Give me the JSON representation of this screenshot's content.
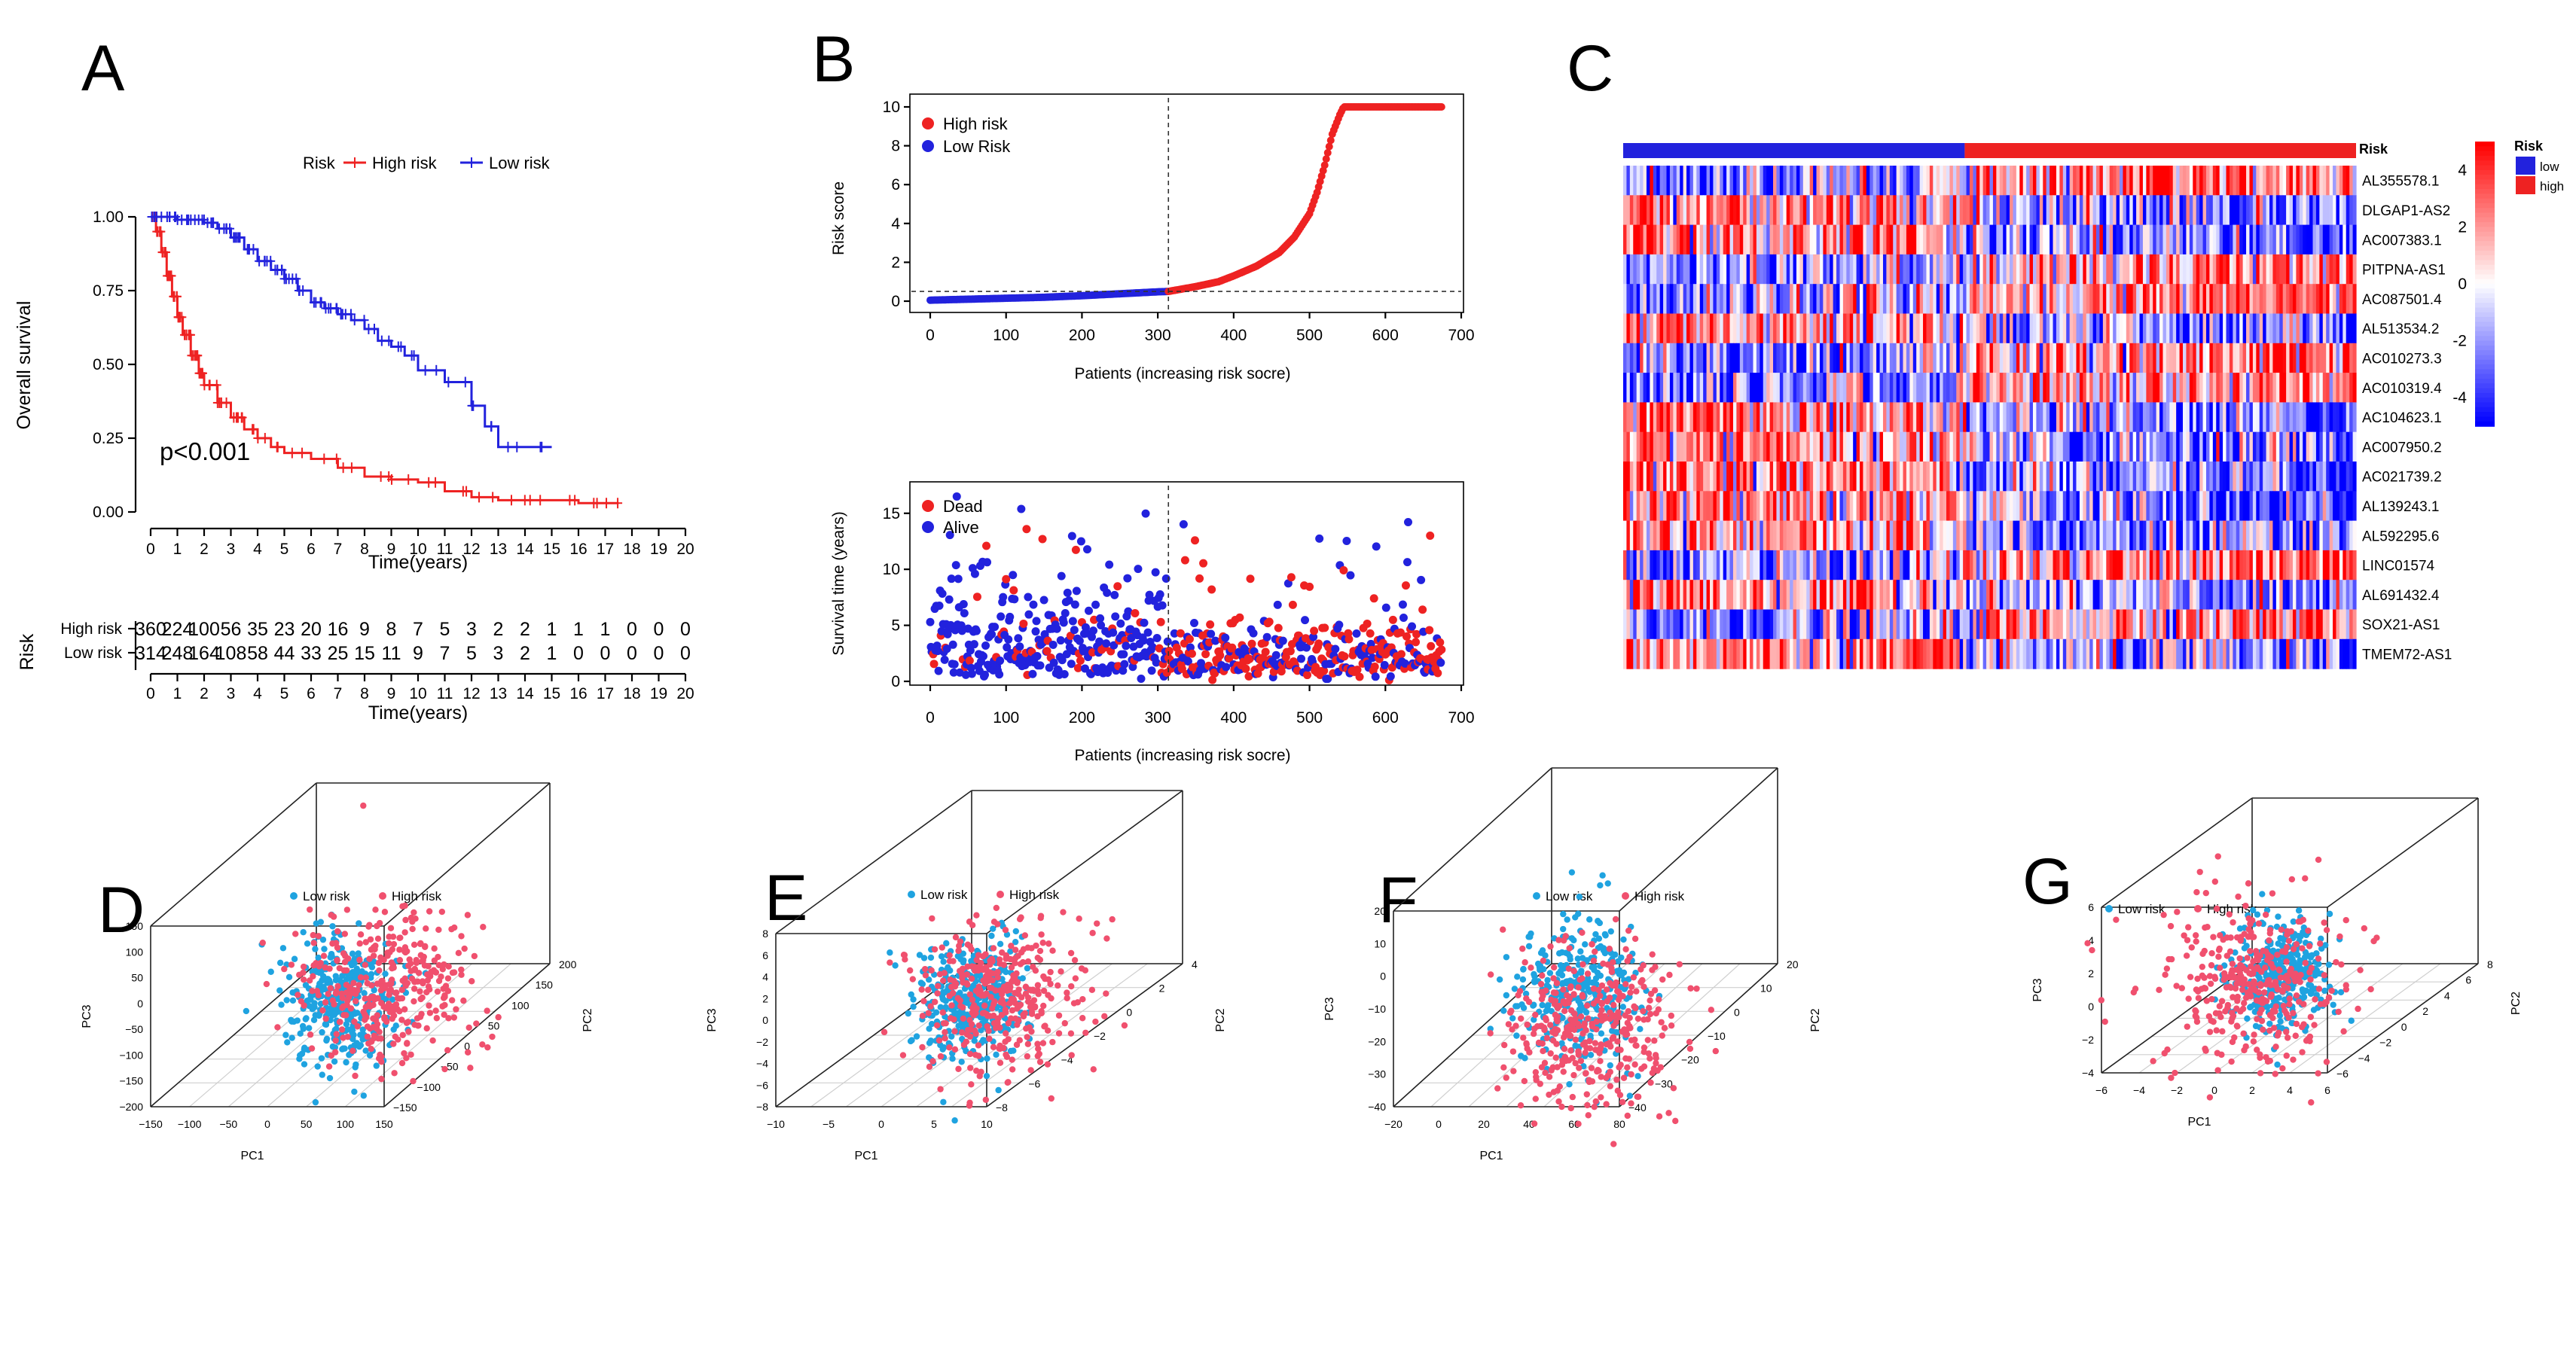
{
  "panels": {
    "A": {
      "letter": "A",
      "chart_data": {
        "type": "line",
        "subtype": "kaplan-meier",
        "legend_title": "Risk",
        "legend": [
          {
            "name": "High risk",
            "color": "#ee2222"
          },
          {
            "name": "Low risk",
            "color": "#2222dd"
          }
        ],
        "xlabel": "Time(years)",
        "ylabel": "Overall survival",
        "xlim": [
          0,
          20
        ],
        "ylim": [
          0,
          1
        ],
        "x_ticks": [
          "0",
          "1",
          "2",
          "3",
          "4",
          "5",
          "6",
          "7",
          "8",
          "9",
          "10",
          "11",
          "12",
          "13",
          "14",
          "15",
          "16",
          "17",
          "18",
          "19",
          "20"
        ],
        "y_ticks": [
          "0.00",
          "0.25",
          "0.50",
          "0.75",
          "1.00"
        ],
        "pvalue": "p<0.001",
        "series": [
          {
            "name": "High risk",
            "color": "#ee2222",
            "x": [
              0,
              0.2,
              0.4,
              0.6,
              0.8,
              1,
              1.2,
              1.5,
              1.8,
              2,
              2.5,
              3,
              3.5,
              4,
              4.5,
              5,
              6,
              7,
              8,
              9,
              10,
              11,
              12,
              13,
              14,
              15,
              16,
              17,
              17.5
            ],
            "y": [
              1,
              0.95,
              0.88,
              0.8,
              0.73,
              0.66,
              0.6,
              0.53,
              0.47,
              0.43,
              0.37,
              0.32,
              0.28,
              0.25,
              0.22,
              0.2,
              0.18,
              0.15,
              0.12,
              0.11,
              0.1,
              0.07,
              0.05,
              0.04,
              0.04,
              0.04,
              0.03,
              0.03,
              0.03
            ]
          },
          {
            "name": "Low risk",
            "color": "#2222dd",
            "x": [
              0,
              0.5,
              1,
              1.5,
              2,
              2.5,
              3,
              3.5,
              4,
              4.5,
              5,
              5.5,
              6,
              6.5,
              7,
              7.5,
              8,
              8.5,
              9,
              9.5,
              10,
              11,
              12,
              12.5,
              13,
              14,
              15
            ],
            "y": [
              1,
              1,
              0.99,
              0.99,
              0.98,
              0.96,
              0.93,
              0.89,
              0.85,
              0.82,
              0.79,
              0.75,
              0.71,
              0.69,
              0.67,
              0.65,
              0.62,
              0.58,
              0.56,
              0.53,
              0.48,
              0.44,
              0.36,
              0.29,
              0.22,
              0.22,
              0.22
            ]
          }
        ]
      },
      "risk_table": {
        "title": "Risk",
        "xlabel": "Time(years)",
        "x_ticks": [
          "0",
          "1",
          "2",
          "3",
          "4",
          "5",
          "6",
          "7",
          "8",
          "9",
          "10",
          "11",
          "12",
          "13",
          "14",
          "15",
          "16",
          "17",
          "18",
          "19",
          "20"
        ],
        "rows": [
          {
            "label": "High risk",
            "color": "#ee2222",
            "values": [
              "360",
              "224",
              "100",
              "56",
              "35",
              "23",
              "20",
              "16",
              "9",
              "8",
              "7",
              "5",
              "3",
              "2",
              "2",
              "1",
              "1",
              "1",
              "0",
              "0",
              "0"
            ]
          },
          {
            "label": "Low risk",
            "color": "#2222dd",
            "values": [
              "314",
              "248",
              "164",
              "108",
              "58",
              "44",
              "33",
              "25",
              "15",
              "11",
              "9",
              "7",
              "5",
              "3",
              "2",
              "1",
              "0",
              "0",
              "0",
              "0",
              "0"
            ]
          }
        ]
      }
    },
    "B": {
      "letter": "B",
      "top": {
        "chart_data": {
          "type": "scatter",
          "xlabel": "Patients (increasing risk socre)",
          "ylabel": "Risk score",
          "xlim": [
            0,
            700
          ],
          "ylim": [
            0,
            10
          ],
          "x_ticks": [
            "0",
            "100",
            "200",
            "300",
            "400",
            "500",
            "600",
            "700"
          ],
          "y_ticks": [
            "0",
            "2",
            "4",
            "6",
            "8",
            "10"
          ],
          "cutoff_x": 314,
          "cutoff_y": 0.5,
          "legend": [
            {
              "name": "High risk",
              "color": "#ee2222"
            },
            {
              "name": "Low Risk",
              "color": "#2222dd"
            }
          ],
          "curve_points": {
            "x": [
              0,
              50,
              100,
              150,
              200,
              250,
              300,
              314,
              350,
              380,
              400,
              430,
              460,
              480,
              500,
              510,
              520,
              530,
              540,
              545,
              600,
              674
            ],
            "y": [
              0.05,
              0.1,
              0.15,
              0.2,
              0.28,
              0.38,
              0.48,
              0.5,
              0.75,
              1.0,
              1.3,
              1.8,
              2.5,
              3.3,
              4.5,
              5.6,
              7,
              8.6,
              9.6,
              10,
              10,
              10
            ]
          }
        }
      },
      "bottom": {
        "chart_data": {
          "type": "scatter",
          "xlabel": "Patients (increasing risk socre)",
          "ylabel": "Survival time (years)",
          "xlim": [
            0,
            700
          ],
          "ylim": [
            0,
            17
          ],
          "x_ticks": [
            "0",
            "100",
            "200",
            "300",
            "400",
            "500",
            "600",
            "700"
          ],
          "y_ticks": [
            "0",
            "5",
            "10",
            "15"
          ],
          "cutoff_x": 314,
          "legend": [
            {
              "name": "Dead",
              "color": "#ee2222"
            },
            {
              "name": "Alive",
              "color": "#2222dd"
            }
          ]
        }
      }
    },
    "C": {
      "letter": "C",
      "chart_data": {
        "type": "heatmap",
        "annotation_label": "Risk",
        "annotation_groups": [
          {
            "name": "low",
            "color": "#2222dd",
            "fraction": 0.466
          },
          {
            "name": "high",
            "color": "#ee2222",
            "fraction": 0.534
          }
        ],
        "rows": [
          "AL355578.1",
          "DLGAP1-AS2",
          "AC007383.1",
          "PITPNA-AS1",
          "AC087501.4",
          "AL513534.2",
          "AC010273.3",
          "AC010319.4",
          "AC104623.1",
          "AC007950.2",
          "AC021739.2",
          "AL139243.1",
          "AL592295.6",
          "LINC01574",
          "AL691432.4",
          "SOX21-AS1",
          "TMEM72-AS1"
        ],
        "row_trend_low_vs_high": [
          -1,
          1,
          1,
          -1,
          -1,
          1,
          -1,
          -1,
          1,
          1,
          1,
          1,
          1,
          -1,
          1,
          -1,
          1
        ],
        "color_scale": {
          "ticks": [
            "4",
            "2",
            "0",
            "-2",
            "-4"
          ],
          "range": [
            -5,
            5
          ],
          "low": "#0000ee",
          "mid": "#ffffff",
          "high": "#ee0000"
        },
        "legend_title": "Risk",
        "legend": [
          {
            "name": "low",
            "color": "#2222dd"
          },
          {
            "name": "high",
            "color": "#ee2222"
          }
        ]
      }
    },
    "D": {
      "letter": "D",
      "chart_data": {
        "type": "scatter",
        "projection": "3d",
        "xlabel": "PC1",
        "ylabel": "PC2",
        "zlabel": "PC3",
        "legend": [
          {
            "name": "Low risk",
            "color": "#1fa3e0"
          },
          {
            "name": "High risk",
            "color": "#f0506e"
          }
        ],
        "x_ticks": [
          "−150",
          "−100",
          "−50",
          "0",
          "50",
          "100",
          "150"
        ],
        "y_ticks": [
          "−150",
          "−100",
          "−50",
          "0",
          "50",
          "100",
          "150",
          "200"
        ],
        "z_ticks": [
          "−200",
          "−150",
          "−100",
          "−50",
          "0",
          "50",
          "100",
          "150"
        ]
      }
    },
    "E": {
      "letter": "E",
      "chart_data": {
        "type": "scatter",
        "projection": "3d",
        "xlabel": "PC1",
        "ylabel": "PC2",
        "zlabel": "PC3",
        "legend": [
          {
            "name": "Low risk",
            "color": "#1fa3e0"
          },
          {
            "name": "High risk",
            "color": "#f0506e"
          }
        ],
        "x_ticks": [
          "−10",
          "−5",
          "0",
          "5",
          "10"
        ],
        "y_ticks": [
          "−8",
          "−6",
          "−4",
          "−2",
          "0",
          "2",
          "4"
        ],
        "z_ticks": [
          "−8",
          "−6",
          "−4",
          "−2",
          "0",
          "2",
          "4",
          "6",
          "8"
        ]
      }
    },
    "F": {
      "letter": "F",
      "chart_data": {
        "type": "scatter",
        "projection": "3d",
        "xlabel": "PC1",
        "ylabel": "PC2",
        "zlabel": "PC3",
        "legend": [
          {
            "name": "Low risk",
            "color": "#1fa3e0"
          },
          {
            "name": "High risk",
            "color": "#f0506e"
          }
        ],
        "x_ticks": [
          "−20",
          "0",
          "20",
          "40",
          "60",
          "80"
        ],
        "y_ticks": [
          "−40",
          "−30",
          "−20",
          "−10",
          "0",
          "10",
          "20"
        ],
        "z_ticks": [
          "−40",
          "−30",
          "−20",
          "−10",
          "0",
          "10",
          "20"
        ]
      }
    },
    "G": {
      "letter": "G",
      "chart_data": {
        "type": "scatter",
        "projection": "3d",
        "xlabel": "PC1",
        "ylabel": "PC2",
        "zlabel": "PC3",
        "legend": [
          {
            "name": "Low risk",
            "color": "#1fa3e0"
          },
          {
            "name": "High risk",
            "color": "#f0506e"
          }
        ],
        "x_ticks": [
          "−6",
          "−4",
          "−2",
          "0",
          "2",
          "4",
          "6"
        ],
        "y_ticks": [
          "−6",
          "−4",
          "−2",
          "0",
          "2",
          "4",
          "6",
          "8"
        ],
        "z_ticks": [
          "−4",
          "−2",
          "0",
          "2",
          "4",
          "6"
        ]
      }
    }
  }
}
